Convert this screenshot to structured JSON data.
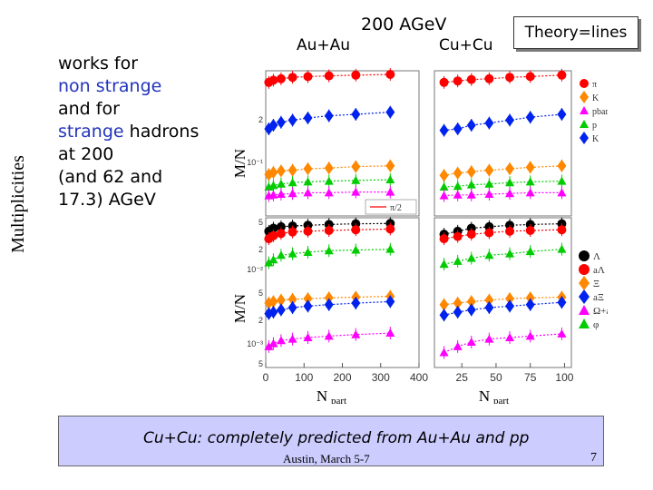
{
  "side_label": "Multiplicities",
  "bullets": {
    "l1": "works for",
    "l2": "non strange",
    "l3": "and for",
    "l4a": "strange",
    "l4b": " hadrons",
    "l5": "at 200",
    "l6": "(and 62 and",
    "l7": "17.3) AGeV"
  },
  "titles": {
    "energy": "200 AGeV",
    "auau": "Au+Au",
    "cucu": "Cu+Cu",
    "theory": "Theory=lines"
  },
  "footer": {
    "text": "Cu+Cu: completely predicted from Au+Au and pp",
    "date": "Austin, March 5-7",
    "page": "7"
  },
  "chart_data": {
    "type": "scatter",
    "xlabel": "N_part",
    "ylabel": "M/N_part",
    "upper_legend": [
      {
        "label": "π",
        "color": "#ff0000",
        "marker": "circle"
      },
      {
        "label": "K",
        "color": "#ff8800",
        "marker": "diamond"
      },
      {
        "label": "pbar",
        "color": "#ff00ff",
        "marker": "triangle"
      },
      {
        "label": "p",
        "color": "#00cc00",
        "marker": "triangle"
      },
      {
        "label": "K",
        "color": "#0022ee",
        "marker": "diamond"
      }
    ],
    "lower_legend": [
      {
        "label": "Λ",
        "color": "#000000",
        "marker": "circle"
      },
      {
        "label": "aΛ",
        "color": "#ff0000",
        "marker": "circle"
      },
      {
        "label": "Ξ",
        "color": "#ff8800",
        "marker": "diamond"
      },
      {
        "label": "aΞ",
        "color": "#0022ee",
        "marker": "diamond"
      },
      {
        "label": "Ω+aΩ",
        "color": "#ff00ff",
        "marker": "triangle"
      },
      {
        "label": "φ",
        "color": "#00cc00",
        "marker": "triangle"
      }
    ],
    "pi_note": "π/2",
    "upper_ytick_labels": [
      "2",
      "10⁻¹"
    ],
    "lower_ytick_labels": [
      "5",
      "2",
      "10⁻²",
      "5",
      "2",
      "10⁻³",
      "5"
    ],
    "auau": {
      "x_ticks": [
        0,
        100,
        200,
        300,
        400
      ],
      "xlim": [
        0,
        400
      ],
      "x": [
        8,
        20,
        40,
        70,
        110,
        165,
        235,
        325
      ],
      "upper": [
        {
          "name": "pi",
          "color": "#ff0000",
          "marker": "circle",
          "y": [
            0.92,
            0.935,
            0.945,
            0.955,
            0.96,
            0.965,
            0.97,
            0.975
          ]
        },
        {
          "name": "K-",
          "color": "#0022ee",
          "marker": "diamond",
          "y": [
            0.6,
            0.625,
            0.645,
            0.66,
            0.675,
            0.69,
            0.7,
            0.715
          ]
        },
        {
          "name": "K+",
          "color": "#ff8800",
          "marker": "diamond",
          "y": [
            0.285,
            0.3,
            0.31,
            0.315,
            0.325,
            0.33,
            0.34,
            0.345
          ]
        },
        {
          "name": "p",
          "color": "#00cc00",
          "marker": "triangle",
          "y": [
            0.2,
            0.21,
            0.22,
            0.23,
            0.235,
            0.24,
            0.245,
            0.25
          ]
        },
        {
          "name": "pbar",
          "color": "#ff00ff",
          "marker": "triangle",
          "y": [
            0.14,
            0.145,
            0.15,
            0.155,
            0.16,
            0.16,
            0.165,
            0.165
          ]
        }
      ],
      "lower": [
        {
          "name": "Lambda",
          "color": "#000000",
          "marker": "circle",
          "y": [
            0.91,
            0.93,
            0.94,
            0.945,
            0.95,
            0.955,
            0.96,
            0.962
          ]
        },
        {
          "name": "phi",
          "color": "#00cc00",
          "marker": "triangle",
          "y": [
            0.7,
            0.72,
            0.75,
            0.76,
            0.77,
            0.78,
            0.785,
            0.79
          ]
        },
        {
          "name": "aLambda",
          "color": "#ff0000",
          "marker": "circle",
          "y": [
            0.86,
            0.88,
            0.895,
            0.905,
            0.91,
            0.915,
            0.92,
            0.925
          ]
        },
        {
          "name": "Xi",
          "color": "#ff8800",
          "marker": "diamond",
          "y": [
            0.43,
            0.44,
            0.45,
            0.455,
            0.46,
            0.465,
            0.47,
            0.475
          ]
        },
        {
          "name": "aXi",
          "color": "#0022ee",
          "marker": "diamond",
          "y": [
            0.36,
            0.37,
            0.385,
            0.4,
            0.41,
            0.42,
            0.43,
            0.44
          ]
        },
        {
          "name": "Omega+aOmega",
          "color": "#ff00ff",
          "marker": "triangle",
          "y": [
            0.14,
            0.16,
            0.18,
            0.19,
            0.2,
            0.21,
            0.22,
            0.23
          ]
        }
      ]
    },
    "cucu": {
      "x_ticks": [
        25,
        50,
        75,
        100
      ],
      "xlim": [
        5,
        105
      ],
      "x": [
        12,
        22,
        32,
        45,
        60,
        75,
        98
      ],
      "upper": [
        {
          "name": "pi",
          "color": "#ff0000",
          "marker": "circle",
          "y": [
            0.92,
            0.93,
            0.94,
            0.945,
            0.955,
            0.96,
            0.97
          ]
        },
        {
          "name": "K-",
          "color": "#0022ee",
          "marker": "diamond",
          "y": [
            0.59,
            0.6,
            0.625,
            0.64,
            0.66,
            0.68,
            0.7
          ]
        },
        {
          "name": "K+",
          "color": "#ff8800",
          "marker": "diamond",
          "y": [
            0.28,
            0.295,
            0.305,
            0.315,
            0.325,
            0.335,
            0.345
          ]
        },
        {
          "name": "p",
          "color": "#00cc00",
          "marker": "triangle",
          "y": [
            0.2,
            0.205,
            0.215,
            0.22,
            0.23,
            0.235,
            0.24
          ]
        },
        {
          "name": "pbar",
          "color": "#ff00ff",
          "marker": "triangle",
          "y": [
            0.14,
            0.145,
            0.145,
            0.15,
            0.155,
            0.16,
            0.16
          ]
        }
      ],
      "lower": [
        {
          "name": "Lambda",
          "color": "#000000",
          "marker": "circle",
          "y": [
            0.89,
            0.91,
            0.93,
            0.94,
            0.95,
            0.955,
            0.96
          ]
        },
        {
          "name": "phi",
          "color": "#00cc00",
          "marker": "triangle",
          "y": [
            0.69,
            0.71,
            0.73,
            0.75,
            0.76,
            0.775,
            0.79
          ]
        },
        {
          "name": "aLambda",
          "color": "#ff0000",
          "marker": "circle",
          "y": [
            0.86,
            0.875,
            0.89,
            0.9,
            0.91,
            0.915,
            0.92
          ]
        },
        {
          "name": "Xi",
          "color": "#ff8800",
          "marker": "diamond",
          "y": [
            0.42,
            0.43,
            0.44,
            0.45,
            0.46,
            0.465,
            0.47
          ]
        },
        {
          "name": "aXi",
          "color": "#0022ee",
          "marker": "diamond",
          "y": [
            0.35,
            0.37,
            0.385,
            0.4,
            0.41,
            0.42,
            0.435
          ]
        },
        {
          "name": "Omega+aOmega",
          "color": "#ff00ff",
          "marker": "triangle",
          "y": [
            0.1,
            0.14,
            0.17,
            0.19,
            0.2,
            0.21,
            0.225
          ]
        }
      ]
    }
  }
}
